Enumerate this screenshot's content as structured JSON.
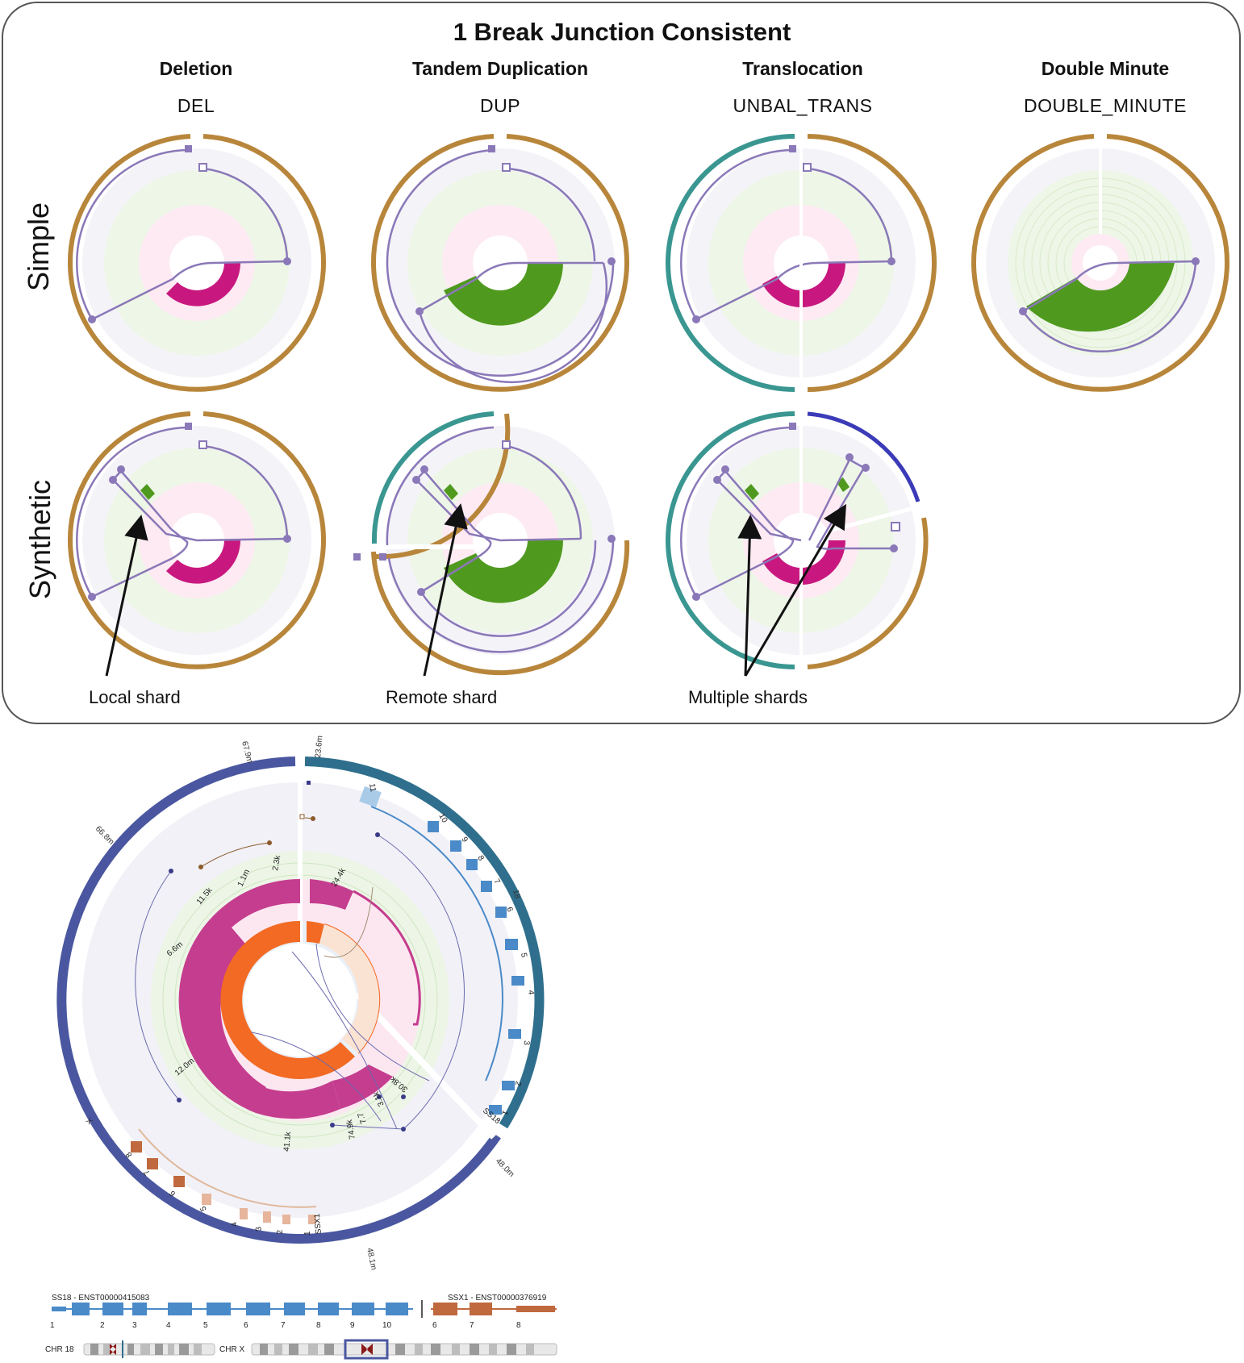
{
  "title": "1 Break Junction Consistent",
  "columns": [
    {
      "name": "Deletion",
      "code": "DEL"
    },
    {
      "name": "Tandem Duplication",
      "code": "DUP"
    },
    {
      "name": "Translocation",
      "code": "UNBAL_TRANS"
    },
    {
      "name": "Double Minute",
      "code": "DOUBLE_MINUTE"
    }
  ],
  "rows": [
    "Simple",
    "Synthetic"
  ],
  "annotations": {
    "local": "Local shard",
    "remote": "Remote shard",
    "multiple": "Multiple shards"
  },
  "colors": {
    "chr_orange": "#b8863b",
    "chr_teal": "#3a9690",
    "chr_blue": "#3b3bb8",
    "link": "#8a78b8",
    "cn_magenta": "#c8187f",
    "cn_green": "#4f9a1e",
    "gene_blue": "#4a8ac8",
    "gene_orange": "#c0683e",
    "ring_blue": "#4a57a0",
    "ring_teal": "#2f6f8d",
    "big_orange": "#f26a23",
    "big_magenta": "#c53d8e"
  },
  "bottom": {
    "position_labels": {
      "top_left": "67.9m",
      "top_right": "23.6m",
      "upper_left": "66.8m",
      "right": "48.0m",
      "bottom": "48.1m",
      "chr_18": "18",
      "chr_x": "X"
    },
    "ss18_exons": [
      "11",
      "10",
      "9",
      "8",
      "7",
      "6",
      "5",
      "4",
      "3",
      "2",
      "1"
    ],
    "ssx1_exons": [
      "8",
      "7",
      "6",
      "5",
      "4",
      "3",
      "2",
      "1"
    ],
    "ss18_name": "SS18",
    "ssx1_name": "SSX1",
    "inner_labels": [
      "2.3k",
      "1.1m",
      "11.5k",
      "6.6m",
      "24.4k",
      "12.0m",
      "41.1k",
      "74.9k",
      "7.7",
      "3.1k",
      "30.8k"
    ],
    "legend": {
      "ss18_transcript": "SS18 - ENST00000415083",
      "ssx1_transcript": "SSX1 - ENST00000376919",
      "ss18_exon_numbers": [
        "1",
        "2",
        "3",
        "4",
        "5",
        "6",
        "7",
        "8",
        "9",
        "10"
      ],
      "ssx1_exon_numbers": [
        "6",
        "7",
        "8"
      ],
      "chr18": "CHR 18",
      "chrx": "CHR X"
    }
  }
}
